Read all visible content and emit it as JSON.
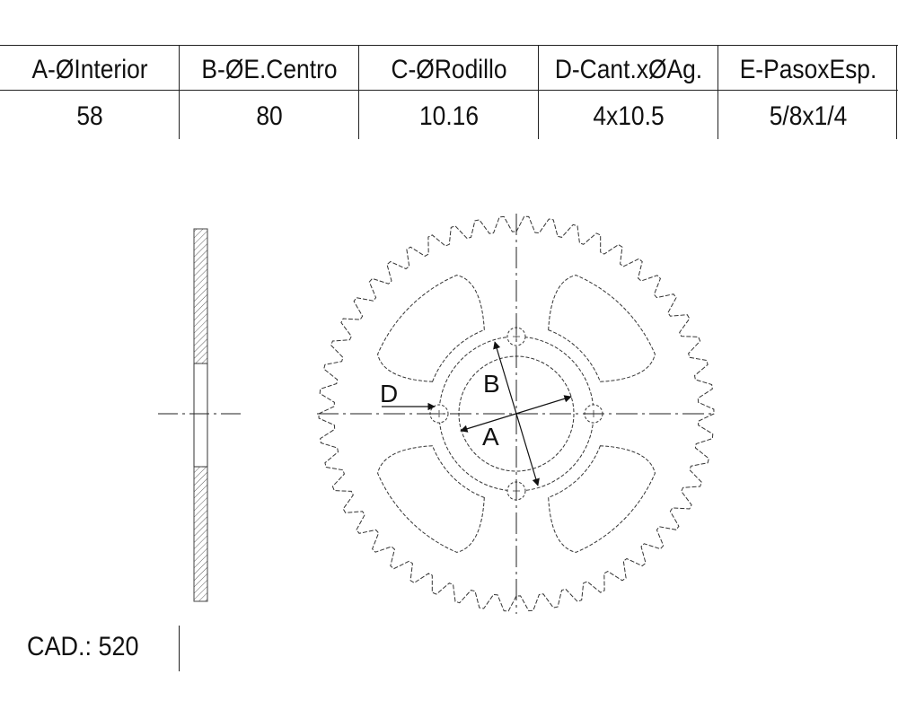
{
  "table": {
    "headers": [
      "A-ØInterior",
      "B-ØE.Centro",
      "C-ØRodillo",
      "D-Cant.xØAg.",
      "E-PasoxEsp."
    ],
    "values": [
      "58",
      "80",
      "10.16",
      "4x10.5",
      "5/8x1/4"
    ]
  },
  "drawing": {
    "sprocket_teeth": 50,
    "bolt_holes": 4,
    "lightening_windows": 4,
    "labels": {
      "inner_diameter": "A",
      "bolt_circle": "B",
      "bolt_hole": "D"
    }
  },
  "footer": {
    "code_label": "CAD.: 520"
  }
}
